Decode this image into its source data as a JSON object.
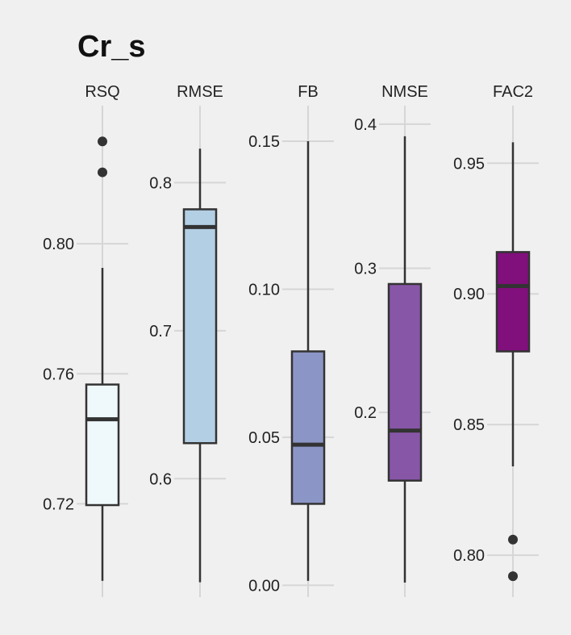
{
  "chart_data": {
    "type": "boxplot",
    "title": "Cr_s",
    "grid": true,
    "panels": [
      {
        "name": "RSQ",
        "ylim": [
          0.6913,
          0.8425
        ],
        "ticks": [
          0.72,
          0.76,
          0.8
        ],
        "tick_labels": [
          "0.72",
          "0.76",
          "0.80"
        ],
        "fill": "#eff8fb",
        "stats": {
          "whisker_low": 0.6963,
          "q1": 0.7196,
          "median": 0.746,
          "q3": 0.7567,
          "whisker_high": 0.7926
        },
        "outliers": [
          0.822,
          0.8315
        ]
      },
      {
        "name": "RMSE",
        "ylim": [
          0.52,
          0.852
        ],
        "ticks": [
          0.6,
          0.7,
          0.8
        ],
        "tick_labels": [
          "0.6",
          "0.7",
          "0.8"
        ],
        "fill": "#b3cfe4",
        "stats": {
          "whisker_low": 0.53,
          "q1": 0.624,
          "median": 0.77,
          "q3": 0.782,
          "whisker_high": 0.823
        },
        "outliers": []
      },
      {
        "name": "FB",
        "ylim": [
          -0.004,
          0.162
        ],
        "ticks": [
          0.0,
          0.05,
          0.1,
          0.15
        ],
        "tick_labels": [
          "0.00",
          "0.05",
          "0.10",
          "0.15"
        ],
        "fill": "#8c96c6",
        "stats": {
          "whisker_low": 0.0015,
          "q1": 0.0275,
          "median": 0.0475,
          "q3": 0.079,
          "whisker_high": 0.15
        },
        "outliers": []
      },
      {
        "name": "NMSE",
        "ylim": [
          0.0719,
          0.4128
        ],
        "ticks": [
          0.2,
          0.3,
          0.4
        ],
        "tick_labels": [
          "0.2",
          "0.3",
          "0.4"
        ],
        "fill": "#8856a7",
        "stats": {
          "whisker_low": 0.082,
          "q1": 0.1527,
          "median": 0.1874,
          "q3": 0.2891,
          "whisker_high": 0.3916
        },
        "outliers": []
      },
      {
        "name": "FAC2",
        "ylim": [
          0.784,
          0.972
        ],
        "ticks": [
          0.8,
          0.85,
          0.9,
          0.95
        ],
        "tick_labels": [
          "0.80",
          "0.85",
          "0.90",
          "0.95"
        ],
        "fill": "#810f7c",
        "stats": {
          "whisker_low": 0.834,
          "q1": 0.878,
          "median": 0.903,
          "q3": 0.916,
          "whisker_high": 0.958
        },
        "outliers": [
          0.806,
          0.792
        ]
      }
    ]
  }
}
